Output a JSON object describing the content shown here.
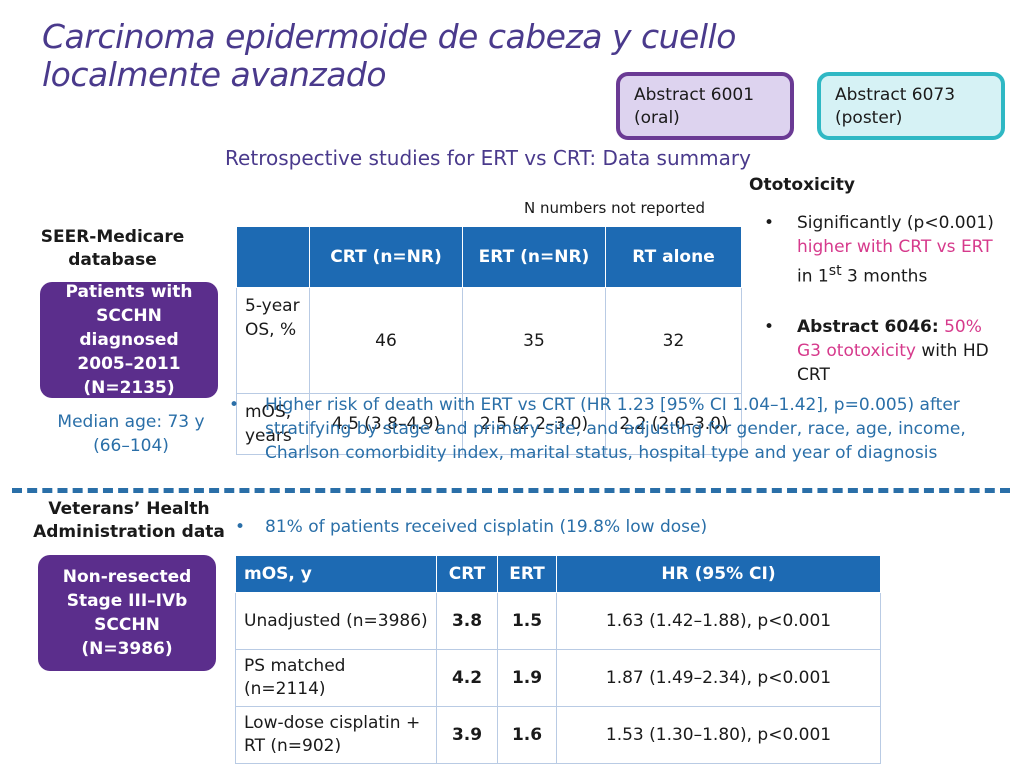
{
  "title": "Carcinoma epidermoide de cabeza y cuello localmente avanzado",
  "badges": {
    "oral": {
      "line1": "Abstract 6001",
      "line2": "(oral)"
    },
    "poster": {
      "line1": "Abstract 6073",
      "line2": "(poster)"
    }
  },
  "subtitle": "Retrospective studies for ERT vs CRT: Data summary",
  "ototoxicity": {
    "heading": "Ototoxicity",
    "item1": {
      "text1": "Significantly (p<0.001) ",
      "highlight": "higher with CRT vs ERT",
      "text2": " in 1",
      "sup": "st",
      "text3": " 3 months"
    },
    "item2": {
      "bold": "Abstract 6046:",
      "highlight": " 50% G3 ototoxicity",
      "text": " with HD CRT"
    }
  },
  "n_note": "N numbers not reported",
  "seer": {
    "heading": "SEER-Medicare database",
    "patients": "Patients with SCCHN diagnosed 2005–2011 (N=2135)",
    "median_age": "Median age: 73 y (66–104)",
    "table": {
      "headers": [
        "",
        "CRT (n=NR)",
        "ERT (n=NR)",
        "RT alone"
      ],
      "rows": [
        [
          "5-year OS, %",
          "46",
          "35",
          "32"
        ],
        [
          "mOS, years",
          "4.5 (3.8–4.9)",
          "2.5 (2.2–3.0)",
          "2.2 (2.0–3.0)"
        ]
      ]
    },
    "bullet": "Higher risk of death with ERT vs CRT (HR 1.23 [95% CI 1.04–1.42], p=0.005) after stratifying by stage and primary site, and adjusting for gender, race, age, income, Charlson comorbidity index, marital status, hospital type and year of diagnosis"
  },
  "va": {
    "heading": "Veterans’ Health Administration data",
    "patients": "Non-resected Stage III–IVb SCCHN (N=3986)",
    "bullet": "81% of patients received cisplatin (19.8% low dose)",
    "table": {
      "headers": [
        "mOS, y",
        "CRT",
        "ERT",
        "HR (95% CI)"
      ],
      "rows": [
        [
          "Unadjusted (n=3986)",
          "3.8",
          "1.5",
          "1.63 (1.42–1.88), p<0.001"
        ],
        [
          "PS matched (n=2114)",
          "4.2",
          "1.9",
          "1.87 (1.49–2.34), p<0.001"
        ],
        [
          "Low-dose cisplatin + RT (n=902)",
          "3.9",
          "1.6",
          "1.53 (1.30–1.80), p<0.001"
        ]
      ]
    }
  },
  "colors": {
    "title": "#4a3a8c",
    "accent_blue": "#1d6ab3",
    "purple_box": "#5b2e8c",
    "pink": "#d63a8c"
  }
}
